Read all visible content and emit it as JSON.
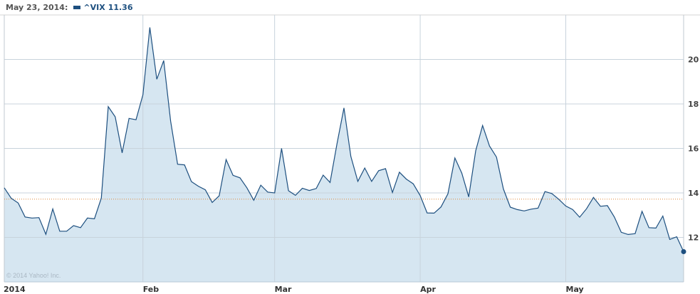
{
  "header": {
    "date_label": "May 23, 2014:",
    "symbol": "^VIX",
    "last_value": "11.36"
  },
  "copyright": "© 2014 Yahoo! Inc.",
  "colors": {
    "line": "#1d4f7f",
    "fill": "#d6e6f1",
    "grid": "#c8d3dc",
    "reference_line": "#e08a3c"
  },
  "chart_data": {
    "type": "area",
    "title": "",
    "xlabel": "",
    "ylabel": "",
    "ylim": [
      10,
      22
    ],
    "y_ticks": [
      12,
      14,
      16,
      18,
      20
    ],
    "y_axis_position": "right",
    "x_tick_labels": [
      {
        "date": "2014-01-02",
        "label": "2014"
      },
      {
        "date": "2014-02-03",
        "label": "Feb"
      },
      {
        "date": "2014-03-03",
        "label": "Mar"
      },
      {
        "date": "2014-04-01",
        "label": "Apr"
      },
      {
        "date": "2014-05-01",
        "label": "May"
      }
    ],
    "grid": true,
    "reference_line": 13.72,
    "series": [
      {
        "symbol": "^VIX",
        "x": [
          "2014-01-02",
          "2014-01-03",
          "2014-01-06",
          "2014-01-07",
          "2014-01-08",
          "2014-01-09",
          "2014-01-10",
          "2014-01-13",
          "2014-01-14",
          "2014-01-15",
          "2014-01-16",
          "2014-01-17",
          "2014-01-21",
          "2014-01-22",
          "2014-01-23",
          "2014-01-24",
          "2014-01-27",
          "2014-01-28",
          "2014-01-29",
          "2014-01-30",
          "2014-01-31",
          "2014-02-03",
          "2014-02-04",
          "2014-02-05",
          "2014-02-06",
          "2014-02-07",
          "2014-02-10",
          "2014-02-11",
          "2014-02-12",
          "2014-02-13",
          "2014-02-14",
          "2014-02-18",
          "2014-02-19",
          "2014-02-20",
          "2014-02-21",
          "2014-02-24",
          "2014-02-25",
          "2014-02-26",
          "2014-02-27",
          "2014-02-28",
          "2014-03-03",
          "2014-03-04",
          "2014-03-05",
          "2014-03-06",
          "2014-03-07",
          "2014-03-10",
          "2014-03-11",
          "2014-03-12",
          "2014-03-13",
          "2014-03-14",
          "2014-03-17",
          "2014-03-18",
          "2014-03-19",
          "2014-03-20",
          "2014-03-21",
          "2014-03-24",
          "2014-03-25",
          "2014-03-26",
          "2014-03-27",
          "2014-03-28",
          "2014-03-31",
          "2014-04-01",
          "2014-04-02",
          "2014-04-03",
          "2014-04-04",
          "2014-04-07",
          "2014-04-08",
          "2014-04-09",
          "2014-04-10",
          "2014-04-11",
          "2014-04-14",
          "2014-04-15",
          "2014-04-16",
          "2014-04-17",
          "2014-04-21",
          "2014-04-22",
          "2014-04-23",
          "2014-04-24",
          "2014-04-25",
          "2014-04-28",
          "2014-04-29",
          "2014-04-30",
          "2014-05-01",
          "2014-05-02",
          "2014-05-05",
          "2014-05-06",
          "2014-05-07",
          "2014-05-08",
          "2014-05-09",
          "2014-05-12",
          "2014-05-13",
          "2014-05-14",
          "2014-05-15",
          "2014-05-16",
          "2014-05-19",
          "2014-05-20",
          "2014-05-21",
          "2014-05-22",
          "2014-05-23"
        ],
        "values": [
          14.23,
          13.76,
          13.55,
          12.92,
          12.87,
          12.89,
          12.14,
          13.28,
          12.28,
          12.28,
          12.53,
          12.44,
          12.87,
          12.84,
          13.77,
          17.88,
          17.42,
          15.8,
          17.35,
          17.29,
          18.41,
          21.44,
          19.11,
          19.95,
          17.23,
          15.29,
          15.26,
          14.51,
          14.3,
          14.14,
          13.57,
          13.87,
          15.5,
          14.79,
          14.68,
          14.23,
          13.67,
          14.35,
          14.04,
          14.0,
          16.0,
          14.1,
          13.89,
          14.21,
          14.11,
          14.2,
          14.8,
          14.47,
          16.22,
          17.82,
          15.64,
          14.52,
          15.12,
          14.52,
          15.0,
          15.09,
          14.02,
          14.93,
          14.62,
          14.41,
          13.88,
          13.1,
          13.09,
          13.37,
          13.96,
          15.57,
          14.89,
          13.82,
          15.89,
          17.03,
          16.11,
          15.61,
          14.18,
          13.36,
          13.25,
          13.19,
          13.27,
          13.32,
          14.06,
          13.97,
          13.71,
          13.41,
          13.25,
          12.91,
          13.29,
          13.8,
          13.4,
          13.43,
          12.92,
          12.23,
          12.13,
          12.17,
          13.17,
          12.44,
          12.42,
          12.96,
          11.91,
          12.03,
          11.36
        ]
      }
    ]
  }
}
